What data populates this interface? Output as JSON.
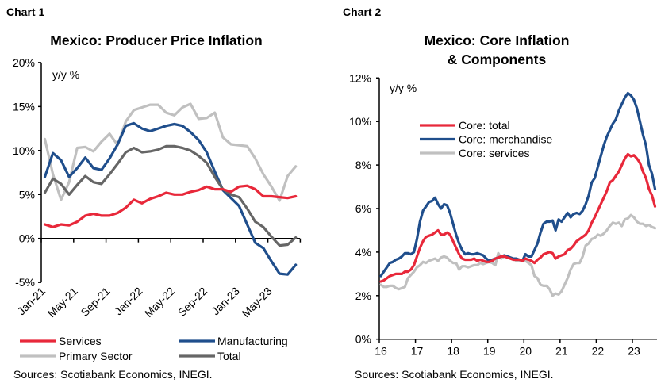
{
  "chart_data": [
    {
      "label": "Chart 1",
      "type": "line",
      "title": "Mexico: Producer Price Inflation",
      "ylabel": "y/y %",
      "ylim": [
        -5,
        20
      ],
      "yticks": [
        "20%",
        "15%",
        "10%",
        "5%",
        "0%",
        "-5%"
      ],
      "ytick_values": [
        20,
        15,
        10,
        5,
        0,
        -5
      ],
      "xticks": [
        "Jan-21",
        "May-21",
        "Sep-21",
        "Jan-22",
        "May-22",
        "Sep-22",
        "Jan-23",
        "May-23"
      ],
      "x_start": "Jan-21",
      "x_end": "Aug-23",
      "x_frequency": "monthly",
      "legend_position": "bottom",
      "grid": false,
      "source": "Sources: Scotiabank Economics, INEGI.",
      "series": [
        {
          "name": "Services",
          "color": "#e8283a",
          "values": [
            1.6,
            1.3,
            1.6,
            1.5,
            1.9,
            2.6,
            2.8,
            2.6,
            2.6,
            2.9,
            3.5,
            4.4,
            4.0,
            4.5,
            4.8,
            5.2,
            5.0,
            5.0,
            5.3,
            5.5,
            5.9,
            5.6,
            5.6,
            5.3,
            5.9,
            6.0,
            5.6,
            4.8,
            4.8,
            4.7,
            4.6,
            4.8
          ]
        },
        {
          "name": "Manufacturing",
          "color": "#1f4e8c",
          "values": [
            7.0,
            9.7,
            8.9,
            7.0,
            8.0,
            9.2,
            8.0,
            7.8,
            9.1,
            10.7,
            12.8,
            13.1,
            12.5,
            12.2,
            12.5,
            12.8,
            13.0,
            12.8,
            12.1,
            11.2,
            9.8,
            7.6,
            5.5,
            4.6,
            3.7,
            1.6,
            -0.5,
            -1.1,
            -2.6,
            -4.0,
            -4.1,
            -3.0
          ]
        },
        {
          "name": "Primary Sector",
          "color": "#c0c0c0",
          "values": [
            11.3,
            7.3,
            4.4,
            6.4,
            10.3,
            10.4,
            9.9,
            11.0,
            11.9,
            10.6,
            13.3,
            14.6,
            14.9,
            15.2,
            15.2,
            14.3,
            14.0,
            14.9,
            15.3,
            13.6,
            13.7,
            14.3,
            11.5,
            10.7,
            10.6,
            10.5,
            9.1,
            7.3,
            5.9,
            4.3,
            7.1,
            8.2
          ]
        },
        {
          "name": "Total",
          "color": "#666666",
          "values": [
            5.2,
            6.8,
            6.2,
            5.0,
            6.1,
            7.1,
            6.4,
            6.2,
            7.3,
            8.5,
            9.8,
            10.3,
            9.8,
            9.9,
            10.1,
            10.5,
            10.5,
            10.3,
            10.0,
            9.4,
            8.6,
            7.0,
            5.6,
            5.0,
            4.7,
            3.4,
            1.9,
            1.3,
            0.2,
            -0.8,
            -0.7,
            0.1
          ]
        }
      ]
    },
    {
      "label": "Chart 2",
      "type": "line",
      "title": "Mexico: Core Inflation",
      "title_line2": "& Components",
      "ylabel": "y/y %",
      "ylim": [
        0,
        12
      ],
      "yticks": [
        "12%",
        "10%",
        "8%",
        "6%",
        "4%",
        "2%",
        "0%"
      ],
      "ytick_values": [
        12,
        10,
        8,
        6,
        4,
        2,
        0
      ],
      "xticks": [
        "16",
        "17",
        "18",
        "19",
        "20",
        "21",
        "22",
        "23"
      ],
      "x_start": "Jan-16",
      "x_end": "Aug-23",
      "x_frequency": "monthly",
      "legend_position": "top-left",
      "grid": false,
      "source": "Sources: Scotiabank Economics, INEGI.",
      "series": [
        {
          "name": "Core: total",
          "color": "#e8283a",
          "values": [
            2.65,
            2.7,
            2.8,
            2.9,
            2.95,
            3.0,
            3.0,
            3.0,
            3.1,
            3.1,
            3.2,
            3.4,
            3.8,
            4.2,
            4.5,
            4.7,
            4.75,
            4.8,
            4.9,
            5.0,
            4.8,
            4.8,
            4.9,
            4.8,
            4.5,
            4.2,
            3.9,
            3.7,
            3.65,
            3.65,
            3.65,
            3.7,
            3.6,
            3.65,
            3.6,
            3.55,
            3.55,
            3.6,
            3.7,
            3.75,
            3.8,
            3.8,
            3.75,
            3.7,
            3.65,
            3.65,
            3.65,
            3.6,
            3.7,
            3.65,
            3.6,
            3.5,
            3.65,
            3.75,
            3.9,
            3.95,
            4.0,
            3.95,
            3.7,
            3.8,
            3.85,
            3.9,
            4.1,
            4.15,
            4.3,
            4.5,
            4.6,
            4.7,
            4.8,
            5.0,
            5.35,
            5.6,
            5.9,
            6.2,
            6.5,
            6.8,
            7.2,
            7.3,
            7.5,
            7.7,
            8.0,
            8.3,
            8.5,
            8.4,
            8.45,
            8.3,
            8.1,
            7.7,
            7.4,
            6.9,
            6.6,
            6.1
          ]
        },
        {
          "name": "Core: merchandise",
          "color": "#1f4e8c",
          "values": [
            2.9,
            3.1,
            3.3,
            3.5,
            3.55,
            3.65,
            3.7,
            3.8,
            3.95,
            3.95,
            3.9,
            4.0,
            4.6,
            5.4,
            5.9,
            6.1,
            6.3,
            6.35,
            6.5,
            6.2,
            6.0,
            6.2,
            6.15,
            5.8,
            5.3,
            4.8,
            4.4,
            4.1,
            3.9,
            3.95,
            3.9,
            3.9,
            3.95,
            3.9,
            3.85,
            3.7,
            3.6,
            3.65,
            3.7,
            3.75,
            3.8,
            3.85,
            3.8,
            3.75,
            3.7,
            3.7,
            3.65,
            3.6,
            3.9,
            3.8,
            3.8,
            4.1,
            4.4,
            4.9,
            5.3,
            5.4,
            5.4,
            5.45,
            5.0,
            5.5,
            5.4,
            5.6,
            5.8,
            5.6,
            5.75,
            5.8,
            5.75,
            5.9,
            6.2,
            6.6,
            7.2,
            7.4,
            7.9,
            8.4,
            8.9,
            9.3,
            9.6,
            9.9,
            10.1,
            10.5,
            10.8,
            11.1,
            11.3,
            11.2,
            11.0,
            10.6,
            10.0,
            9.4,
            8.9,
            8.0,
            7.6,
            6.9
          ]
        },
        {
          "name": "Core: services",
          "color": "#c0c0c0",
          "values": [
            2.5,
            2.4,
            2.4,
            2.45,
            2.45,
            2.35,
            2.3,
            2.35,
            2.4,
            2.8,
            2.95,
            3.1,
            3.3,
            3.4,
            3.55,
            3.5,
            3.6,
            3.65,
            3.7,
            3.6,
            3.75,
            3.8,
            3.75,
            3.6,
            3.5,
            3.5,
            3.2,
            3.35,
            3.35,
            3.3,
            3.35,
            3.4,
            3.4,
            3.5,
            3.45,
            3.5,
            3.55,
            3.5,
            3.4,
            3.95,
            3.7,
            3.8,
            3.8,
            3.75,
            3.7,
            3.6,
            3.6,
            3.6,
            3.6,
            3.5,
            3.4,
            2.9,
            2.8,
            2.5,
            2.45,
            2.45,
            2.3,
            2.0,
            2.1,
            2.05,
            2.2,
            2.5,
            2.8,
            3.2,
            3.45,
            3.5,
            3.5,
            3.8,
            4.3,
            4.4,
            4.6,
            4.65,
            4.8,
            4.75,
            4.85,
            5.0,
            5.2,
            5.35,
            5.3,
            5.35,
            5.2,
            5.5,
            5.55,
            5.7,
            5.6,
            5.4,
            5.3,
            5.3,
            5.2,
            5.25,
            5.15,
            5.1
          ]
        }
      ]
    }
  ]
}
